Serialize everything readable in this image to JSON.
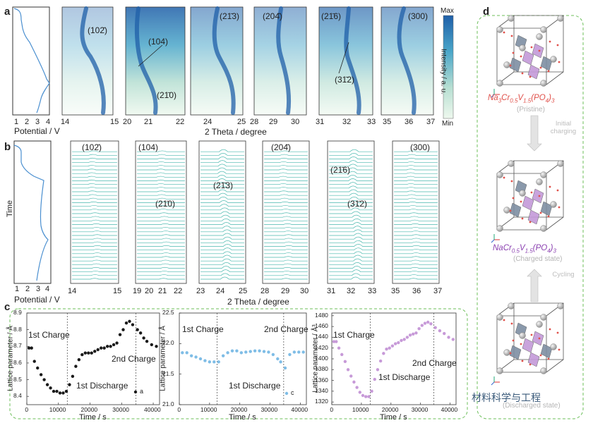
{
  "panels": {
    "a": {
      "label": "a",
      "potential_axis": {
        "label": "Potential / V",
        "ticks": [
          "1",
          "2",
          "3",
          "4"
        ]
      },
      "two_theta_label": "2 Theta / degree",
      "colorbar": {
        "max": "Max",
        "min": "Min",
        "label": "Intensity / a. u.",
        "colors": [
          "#1f5fa8",
          "#4aa6c9",
          "#b7dfd2",
          "#eef8ee"
        ]
      },
      "maps": [
        {
          "ticks": [
            "14",
            "15"
          ],
          "peaks": [
            "(102̄)"
          ]
        },
        {
          "ticks": [
            "20",
            "21",
            "22"
          ],
          "peaks": [
            "(104)",
            "(21̄0)"
          ]
        },
        {
          "ticks": [
            "24",
            "25"
          ],
          "peaks": [
            "(21̄3)"
          ]
        },
        {
          "ticks": [
            "28",
            "29",
            "30"
          ],
          "peaks": [
            "(204̄)"
          ]
        },
        {
          "ticks": [
            "31",
            "32",
            "33"
          ],
          "peaks": [
            "(21̄6)",
            "(31̄2)"
          ]
        },
        {
          "ticks": [
            "35",
            "36",
            "37"
          ],
          "peaks": [
            "(300)"
          ]
        }
      ]
    },
    "b": {
      "label": "b",
      "time_label": "Time",
      "potential_axis": {
        "label": "Potential / V",
        "ticks": [
          "1",
          "2",
          "3",
          "4"
        ]
      },
      "two_theta_label": "2 Theta / degree",
      "line_color": "#49b8ae",
      "stacks": [
        {
          "ticks": [
            "14",
            "15"
          ],
          "peaks": [
            "(102̄)"
          ]
        },
        {
          "ticks": [
            "19",
            "20",
            "21",
            "22"
          ],
          "peaks": [
            "(104)",
            "(21̄0)"
          ]
        },
        {
          "ticks": [
            "23",
            "24",
            "25"
          ],
          "peaks": [
            "(21̄3)"
          ]
        },
        {
          "ticks": [
            "28",
            "29",
            "30"
          ],
          "peaks": [
            "(204̄)"
          ]
        },
        {
          "ticks": [
            "31",
            "32",
            "33"
          ],
          "peaks": [
            "(21̄6)",
            "(31̄2)"
          ]
        },
        {
          "ticks": [
            "35",
            "36",
            "37"
          ],
          "peaks": [
            "(300)"
          ]
        }
      ]
    },
    "c": {
      "label": "c",
      "x_label": "Time / s",
      "border_color": "#6cbf5a"
    },
    "d": {
      "label": "d",
      "states": [
        {
          "formula_html": "Na<sub>3</sub>Cr<sub>0.5</sub>V<sub>1.5</sub>(PO<sub>4</sub>)<sub>3</sub>",
          "state": "(Pristine)",
          "color": "#e0504a"
        },
        {
          "formula_html": "NaCr<sub>0.5</sub>V<sub>1.5</sub>(PO<sub>4</sub>)<sub>3</sub>",
          "state": "(Charged state)",
          "color": "#8a3fb0"
        },
        {
          "formula_html": "",
          "state": "(Discharged state)",
          "color": "#8a3fb0"
        }
      ],
      "arrows": [
        "Initial charging",
        "Cycling"
      ],
      "watermark": "材料科学与工程"
    }
  },
  "chart_data": [
    {
      "type": "scatter",
      "title": "",
      "xlabel": "Time / s",
      "ylabel": "Lattice parameter / Å",
      "xlim": [
        0,
        42000
      ],
      "ylim": [
        8.35,
        8.9
      ],
      "xticks": [
        "0",
        "10000",
        "20000",
        "30000",
        "40000"
      ],
      "yticks": [
        "8.4",
        "8.5",
        "8.6",
        "8.7",
        "8.8",
        "8.9"
      ],
      "color": "#1a1a1a",
      "dividers": [
        12800,
        34500
      ],
      "annotations": [
        "1st Charge",
        "1st Discharge",
        "2nd Charge"
      ],
      "legend": "a",
      "x": [
        700,
        1500,
        2400,
        3400,
        4500,
        5500,
        6500,
        7500,
        8500,
        9500,
        10500,
        11500,
        12500,
        13500,
        14500,
        15500,
        16500,
        17500,
        18500,
        19500,
        20500,
        21500,
        22500,
        23500,
        24500,
        25500,
        26500,
        27500,
        28500,
        29500,
        30500,
        31500,
        32500,
        33500,
        35000,
        36000,
        37000,
        38000,
        39500,
        41000
      ],
      "y": [
        8.69,
        8.69,
        8.61,
        8.57,
        8.53,
        8.5,
        8.47,
        8.45,
        8.43,
        8.43,
        8.42,
        8.42,
        8.43,
        8.47,
        8.52,
        8.58,
        8.62,
        8.65,
        8.66,
        8.66,
        8.66,
        8.67,
        8.68,
        8.69,
        8.69,
        8.7,
        8.7,
        8.71,
        8.72,
        8.77,
        8.8,
        8.84,
        8.85,
        8.83,
        8.8,
        8.78,
        8.75,
        8.73,
        8.71,
        8.7
      ]
    },
    {
      "type": "scatter",
      "title": "",
      "xlabel": "Time / s",
      "ylabel": "Lattice parameter / Å",
      "xlim": [
        0,
        42000
      ],
      "ylim": [
        21.0,
        22.5
      ],
      "xticks": [
        "0",
        "10000",
        "20000",
        "30000",
        "40000"
      ],
      "yticks": [
        "21.0",
        "21.5",
        "22.0",
        "22.5"
      ],
      "color": "#7fbde6",
      "dividers": [
        12500,
        34500
      ],
      "annotations": [
        "1st Charge",
        "1st Discharge",
        "2nd Charge"
      ],
      "legend": "c",
      "x": [
        1000,
        2500,
        4000,
        5500,
        7000,
        8500,
        10000,
        11500,
        13000,
        14500,
        16000,
        17500,
        19000,
        20500,
        22000,
        23500,
        25000,
        26500,
        28000,
        29500,
        31000,
        32500,
        33500,
        35000,
        36500,
        38000,
        39500,
        41000
      ],
      "y": [
        21.85,
        21.85,
        21.8,
        21.78,
        21.75,
        21.72,
        21.7,
        21.7,
        21.7,
        21.8,
        21.85,
        21.88,
        21.88,
        21.85,
        21.86,
        21.87,
        21.88,
        21.88,
        21.87,
        21.86,
        21.82,
        21.75,
        21.7,
        21.6,
        21.82,
        21.86,
        21.86,
        21.86
      ]
    },
    {
      "type": "scatter",
      "title": "",
      "xlabel": "Time / s",
      "ylabel": "Lattice parameter / Å³",
      "xlim": [
        0,
        42000
      ],
      "ylim": [
        1315,
        1485
      ],
      "xticks": [
        "0",
        "10000",
        "20000",
        "30000",
        "40000"
      ],
      "yticks": [
        "1320",
        "1340",
        "1360",
        "1380",
        "1400",
        "1420",
        "1440",
        "1460",
        "1480"
      ],
      "color": "#c79ad8",
      "dividers": [
        13000,
        34500
      ],
      "annotations": [
        "1st Charge",
        "1st Discharge",
        "2nd Charge"
      ],
      "legend": "",
      "x": [
        700,
        1500,
        2400,
        3400,
        4500,
        5500,
        6500,
        7500,
        8500,
        9500,
        10500,
        11500,
        12500,
        13500,
        14500,
        15500,
        16500,
        17500,
        18500,
        19500,
        20500,
        21500,
        22500,
        23500,
        24500,
        25500,
        26500,
        27500,
        28500,
        29500,
        30500,
        31500,
        32500,
        33500,
        35000,
        36500,
        38000,
        39500,
        41000
      ],
      "y": [
        1432,
        1432,
        1420,
        1408,
        1395,
        1380,
        1368,
        1357,
        1347,
        1338,
        1332,
        1330,
        1330,
        1340,
        1362,
        1380,
        1396,
        1410,
        1418,
        1420,
        1424,
        1428,
        1430,
        1434,
        1436,
        1440,
        1444,
        1446,
        1448,
        1456,
        1462,
        1466,
        1468,
        1465,
        1458,
        1452,
        1447,
        1440,
        1436
      ]
    }
  ]
}
